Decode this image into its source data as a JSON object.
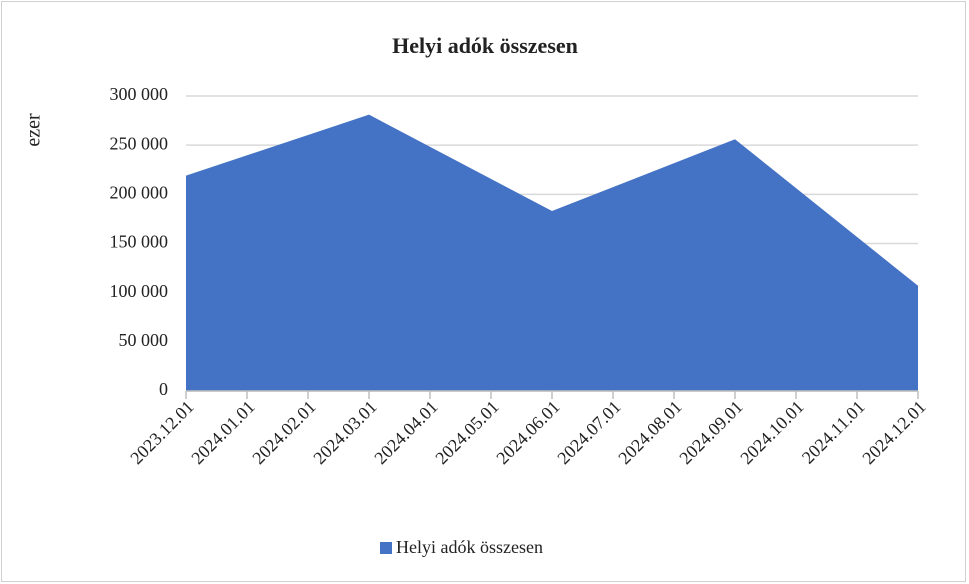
{
  "chart_data": {
    "type": "area",
    "title": "Helyi adók összesen",
    "ylabel": "ezer",
    "x": [
      "2023.12.01",
      "2024.03.01",
      "2024.06.01",
      "2024.09.01",
      "2024.12.01"
    ],
    "series": [
      {
        "name": "Helyi adók összesen",
        "color": "#4472c4",
        "values": [
          219000,
          281000,
          183000,
          256000,
          107000
        ]
      }
    ],
    "xticks": [
      "2023.12.01",
      "2024.01.01",
      "2024.02.01",
      "2024.03.01",
      "2024.04.01",
      "2024.05.01",
      "2024.06.01",
      "2024.07.01",
      "2024.08.01",
      "2024.09.01",
      "2024.10.01",
      "2024.11.01",
      "2024.12.01"
    ],
    "ylim": [
      0,
      300000
    ],
    "yticks": [
      {
        "value": 0,
        "label": "0"
      },
      {
        "value": 50000,
        "label": "50 000"
      },
      {
        "value": 100000,
        "label": "100 000"
      },
      {
        "value": 150000,
        "label": "150 000"
      },
      {
        "value": 200000,
        "label": "200 000"
      },
      {
        "value": 250000,
        "label": "250 000"
      },
      {
        "value": 300000,
        "label": "300 000"
      }
    ],
    "grid": true,
    "legend": "bottom"
  }
}
